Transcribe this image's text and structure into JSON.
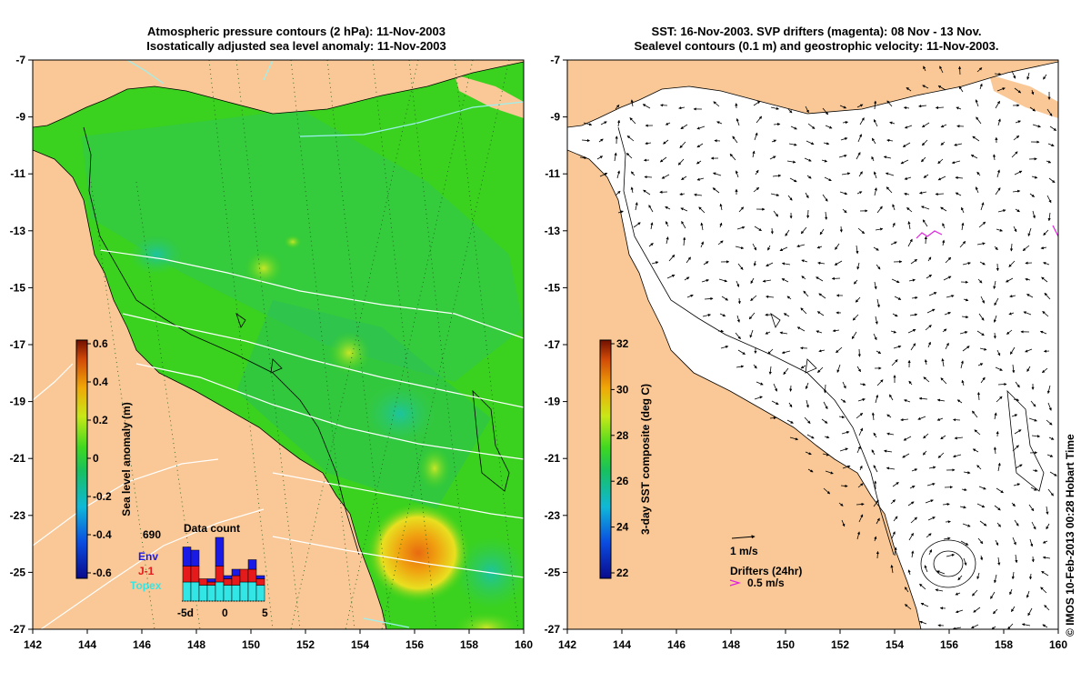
{
  "left_panel": {
    "title_line1": "Atmospheric pressure contours (2 hPa): 11-Nov-2003",
    "title_line2": "Isostatically adjusted sea level anomaly: 11-Nov-2003",
    "colorbar": {
      "label": "Sea level anomaly (m)",
      "ticks": [
        "0.6",
        "0.4",
        "0.2",
        "0",
        "-0.2",
        "-0.4",
        "-0.6"
      ]
    },
    "data_count": {
      "title": "Data count",
      "max_label": "690",
      "legend": [
        {
          "name": "Env",
          "color": "#1a1ae6"
        },
        {
          "name": "J-1",
          "color": "#e61a1a"
        },
        {
          "name": "Topex",
          "color": "#33e6e6"
        }
      ],
      "x_ticks": [
        "-5d",
        "0",
        "5"
      ],
      "bars": [
        {
          "topex": 0.3,
          "j1": 0.25,
          "env": 0.3
        },
        {
          "topex": 0.3,
          "j1": 0.25,
          "env": 0.25
        },
        {
          "topex": 0.25,
          "j1": 0.1,
          "env": 0.0
        },
        {
          "topex": 0.25,
          "j1": 0.05,
          "env": 0.05
        },
        {
          "topex": 0.3,
          "j1": 0.25,
          "env": 0.45
        },
        {
          "topex": 0.25,
          "j1": 0.1,
          "env": 0.05
        },
        {
          "topex": 0.25,
          "j1": 0.15,
          "env": 0.1
        },
        {
          "topex": 0.3,
          "j1": 0.2,
          "env": 0.0
        },
        {
          "topex": 0.3,
          "j1": 0.2,
          "env": 0.15
        },
        {
          "topex": 0.25,
          "j1": 0.1,
          "env": 0.05
        }
      ]
    }
  },
  "right_panel": {
    "title_line1": "SST: 16-Nov-2003. SVP drifters (magenta): 08 Nov - 13 Nov.",
    "title_line2": "Sealevel contours (0.1 m) and geostrophic velocity: 11-Nov-2003.",
    "colorbar": {
      "label": "3-day SST composite (deg C)",
      "ticks": [
        "32",
        "30",
        "28",
        "26",
        "24",
        "22"
      ]
    },
    "velocity_key": "1 m/s",
    "drifters_key_title": "Drifters (24hr)",
    "drifters_key_speed": "0.5 m/s"
  },
  "axes": {
    "lon_ticks": [
      "142",
      "144",
      "146",
      "148",
      "150",
      "152",
      "154",
      "156",
      "158",
      "160"
    ],
    "lat_ticks": [
      "-7",
      "-9",
      "-11",
      "-13",
      "-15",
      "-17",
      "-19",
      "-21",
      "-23",
      "-25",
      "-27"
    ]
  },
  "credit": "© IMOS 10-Feb-2013 00:28 Hobart Time",
  "colors": {
    "land": "#f9c896",
    "ocean_green": "#3ad21e",
    "drifter": "#e020e0"
  }
}
